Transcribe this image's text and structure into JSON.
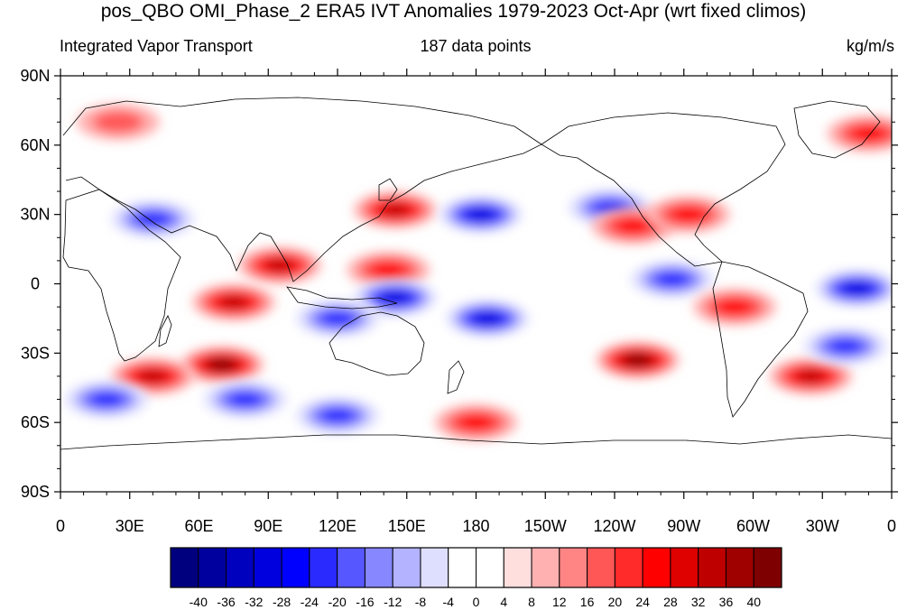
{
  "title": "pos_QBO OMI_Phase_2 ERA5 IVT Anomalies 1979-2023 Oct-Apr (wrt fixed climos)",
  "left_label": "Integrated Vapor Transport",
  "center_label": "187 data points",
  "right_label": "kg/m/s",
  "lat_ticks": [
    {
      "label": "90N",
      "lat": 90
    },
    {
      "label": "60N",
      "lat": 60
    },
    {
      "label": "30N",
      "lat": 30
    },
    {
      "label": "0",
      "lat": 0
    },
    {
      "label": "30S",
      "lat": -30
    },
    {
      "label": "60S",
      "lat": -60
    },
    {
      "label": "90S",
      "lat": -90
    }
  ],
  "lon_ticks": [
    {
      "label": "0",
      "lon": 0
    },
    {
      "label": "30E",
      "lon": 30
    },
    {
      "label": "60E",
      "lon": 60
    },
    {
      "label": "90E",
      "lon": 90
    },
    {
      "label": "120E",
      "lon": 120
    },
    {
      "label": "150E",
      "lon": 150
    },
    {
      "label": "180",
      "lon": 180
    },
    {
      "label": "150W",
      "lon": 210
    },
    {
      "label": "120W",
      "lon": 240
    },
    {
      "label": "90W",
      "lon": 270
    },
    {
      "label": "60W",
      "lon": 300
    },
    {
      "label": "30W",
      "lon": 330
    },
    {
      "label": "0",
      "lon": 360
    }
  ],
  "colorbar": {
    "labels": [
      "-40",
      "-36",
      "-32",
      "-28",
      "-24",
      "-20",
      "-16",
      "-12",
      "-8",
      "-4",
      "0",
      "4",
      "8",
      "12",
      "16",
      "20",
      "24",
      "28",
      "32",
      "36",
      "40"
    ],
    "colors": [
      "#00007f",
      "#00009f",
      "#0000bf",
      "#0000df",
      "#0000ff",
      "#2a2aff",
      "#5757ff",
      "#8787ff",
      "#b3b3ff",
      "#dedeff",
      "#ffffff",
      "#ffffff",
      "#ffdede",
      "#ffb0b0",
      "#ff8484",
      "#ff5656",
      "#ff2a2a",
      "#ff0000",
      "#df0000",
      "#bf0000",
      "#9f0000",
      "#7f0000"
    ]
  },
  "anomalies": [
    {
      "lon": 145,
      "lat": 32,
      "value": 28
    },
    {
      "lon": 182,
      "lat": 30,
      "value": -32
    },
    {
      "lon": 238,
      "lat": 33,
      "value": -24
    },
    {
      "lon": 248,
      "lat": 25,
      "value": 24
    },
    {
      "lon": 272,
      "lat": 30,
      "value": 24
    },
    {
      "lon": 40,
      "lat": 28,
      "value": -20
    },
    {
      "lon": 95,
      "lat": 8,
      "value": 28
    },
    {
      "lon": 142,
      "lat": 6,
      "value": 24
    },
    {
      "lon": 75,
      "lat": -8,
      "value": 28
    },
    {
      "lon": 145,
      "lat": -6,
      "value": -32
    },
    {
      "lon": 185,
      "lat": -15,
      "value": -32
    },
    {
      "lon": 120,
      "lat": -15,
      "value": -24
    },
    {
      "lon": 265,
      "lat": 2,
      "value": -24
    },
    {
      "lon": 345,
      "lat": -2,
      "value": -28
    },
    {
      "lon": 292,
      "lat": -10,
      "value": 24
    },
    {
      "lon": 70,
      "lat": -35,
      "value": 40
    },
    {
      "lon": 40,
      "lat": -40,
      "value": 28
    },
    {
      "lon": 80,
      "lat": -50,
      "value": -24
    },
    {
      "lon": 250,
      "lat": -33,
      "value": 36
    },
    {
      "lon": 325,
      "lat": -40,
      "value": 28
    },
    {
      "lon": 340,
      "lat": -27,
      "value": -24
    },
    {
      "lon": 180,
      "lat": -60,
      "value": 24
    },
    {
      "lon": 20,
      "lat": -50,
      "value": -24
    },
    {
      "lon": 120,
      "lat": -57,
      "value": -20
    },
    {
      "lon": 350,
      "lat": 65,
      "value": 20
    },
    {
      "lon": 25,
      "lat": 70,
      "value": 12
    }
  ]
}
